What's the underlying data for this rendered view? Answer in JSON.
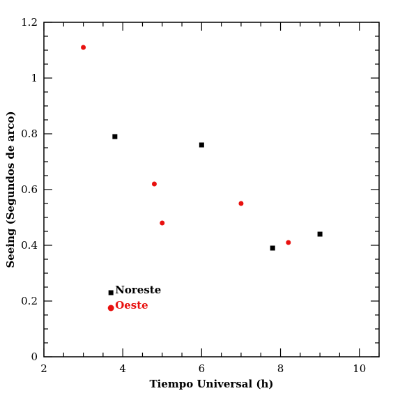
{
  "chart_data": {
    "type": "scatter",
    "xlabel": "Tiempo Universal (h)",
    "ylabel": "Seeing (Segundos de arco)",
    "xlim": [
      2,
      10.5
    ],
    "ylim": [
      0,
      1.2
    ],
    "x_ticks": [
      2,
      4,
      6,
      8,
      10
    ],
    "x_tick_labels": [
      "2",
      "4",
      "6",
      "8",
      "10"
    ],
    "y_ticks": [
      0,
      0.2,
      0.4,
      0.6,
      0.8,
      1,
      1.2
    ],
    "y_tick_labels": [
      "0",
      "0.2",
      "0.4",
      "0.6",
      "0.8",
      "1",
      "1.2"
    ],
    "grid": false,
    "legend_position": "bottom-left",
    "series": [
      {
        "name": "Noreste",
        "color": "#000000",
        "marker": "square",
        "points": [
          {
            "x": 3.8,
            "y": 0.79
          },
          {
            "x": 6.0,
            "y": 0.76
          },
          {
            "x": 7.8,
            "y": 0.39
          },
          {
            "x": 9.0,
            "y": 0.44
          }
        ]
      },
      {
        "name": "Oeste",
        "color": "#e8110f",
        "marker": "circle",
        "points": [
          {
            "x": 3.0,
            "y": 1.11
          },
          {
            "x": 4.8,
            "y": 0.62
          },
          {
            "x": 5.0,
            "y": 0.48
          },
          {
            "x": 7.0,
            "y": 0.55
          },
          {
            "x": 8.2,
            "y": 0.41
          }
        ]
      }
    ]
  }
}
